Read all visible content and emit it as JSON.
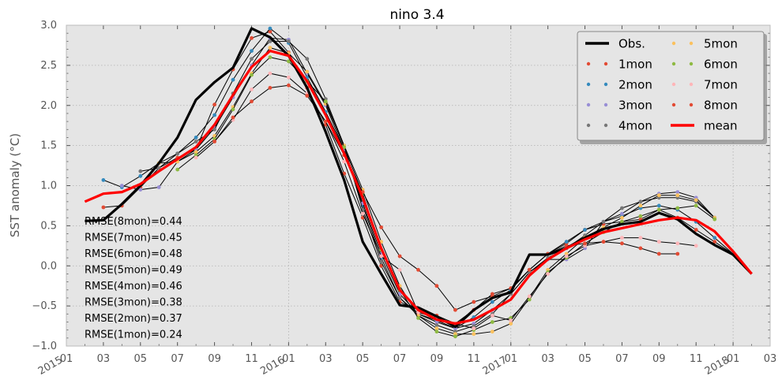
{
  "chart_data": {
    "type": "line",
    "title": "nino 3.4",
    "ylabel": "SST anomaly (°C)",
    "xlabel": "",
    "ylim": [
      -1.0,
      3.0
    ],
    "xlim": [
      "2015-01",
      "2018-03"
    ],
    "grid": true,
    "legend_position": "top-right",
    "y_ticks": [
      "−1.0",
      "−0.5",
      "0.0",
      "0.5",
      "1.0",
      "1.5",
      "2.0",
      "2.5",
      "3.0"
    ],
    "x_ticks": [
      "2015",
      "01",
      "03",
      "05",
      "07",
      "09",
      "11",
      "2016",
      "01",
      "03",
      "05",
      "07",
      "09",
      "11",
      "2017",
      "01",
      "03",
      "05",
      "07",
      "09",
      "11",
      "2018",
      "01",
      "03"
    ],
    "colors": {
      "obs": "#000000",
      "mean": "#ff0000",
      "1mon": "#e24a33",
      "2mon": "#348abd",
      "3mon": "#988ed5",
      "4mon": "#777777",
      "5mon": "#fbc15e",
      "6mon": "#8eba42",
      "7mon": "#ffb5b8",
      "8mon": "#e24a33"
    },
    "obs": {
      "name": "Obs.",
      "x": [
        "2015-02",
        "2015-03",
        "2015-04",
        "2015-05",
        "2015-06",
        "2015-07",
        "2015-08",
        "2015-09",
        "2015-10",
        "2015-11",
        "2015-12",
        "2016-01",
        "2016-02",
        "2016-03",
        "2016-04",
        "2016-05",
        "2016-06",
        "2016-07",
        "2016-08",
        "2016-09",
        "2016-10",
        "2016-11",
        "2016-12",
        "2017-01",
        "2017-02",
        "2017-03",
        "2017-04",
        "2017-05",
        "2017-06",
        "2017-07",
        "2017-08",
        "2017-09",
        "2017-10",
        "2017-11",
        "2017-12",
        "2018-01",
        "2018-02"
      ],
      "values": [
        0.56,
        0.57,
        0.77,
        1.0,
        1.28,
        1.6,
        2.07,
        2.29,
        2.47,
        2.96,
        2.85,
        2.62,
        2.22,
        1.67,
        1.07,
        0.3,
        -0.1,
        -0.49,
        -0.52,
        -0.63,
        -0.76,
        -0.55,
        -0.4,
        -0.33,
        0.14,
        0.14,
        0.22,
        0.35,
        0.46,
        0.52,
        0.55,
        0.66,
        0.58,
        0.4,
        0.26,
        0.14,
        -0.1
      ]
    },
    "mean": {
      "name": "mean",
      "x": [
        "2015-02",
        "2015-03",
        "2015-04",
        "2015-05",
        "2015-06",
        "2015-07",
        "2015-08",
        "2015-09",
        "2015-10",
        "2015-11",
        "2015-12",
        "2016-01",
        "2016-02",
        "2016-03",
        "2016-04",
        "2016-05",
        "2016-06",
        "2016-07",
        "2016-08",
        "2016-09",
        "2016-10",
        "2016-11",
        "2016-12",
        "2017-01",
        "2017-02",
        "2017-03",
        "2017-04",
        "2017-05",
        "2017-06",
        "2017-07",
        "2017-08",
        "2017-09",
        "2017-10",
        "2017-11",
        "2017-12",
        "2018-01",
        "2018-02"
      ],
      "values": [
        0.8,
        0.9,
        0.92,
        1.02,
        1.18,
        1.33,
        1.48,
        1.76,
        2.13,
        2.48,
        2.68,
        2.62,
        2.3,
        1.88,
        1.4,
        0.85,
        0.22,
        -0.3,
        -0.55,
        -0.67,
        -0.72,
        -0.67,
        -0.55,
        -0.42,
        -0.12,
        0.08,
        0.22,
        0.33,
        0.42,
        0.47,
        0.52,
        0.57,
        0.6,
        0.57,
        0.43,
        0.18,
        -0.1
      ]
    },
    "series": [
      {
        "name": "1mon",
        "x": [
          "2015-03",
          "2015-04",
          "2015-05",
          "2015-06",
          "2015-07",
          "2015-08",
          "2015-09",
          "2015-10",
          "2015-11",
          "2015-12",
          "2016-01",
          "2016-02",
          "2016-03",
          "2016-04",
          "2016-05",
          "2016-06",
          "2016-07",
          "2016-08",
          "2016-09",
          "2016-10",
          "2016-11",
          "2016-12",
          "2017-01",
          "2017-02",
          "2017-03",
          "2017-04",
          "2017-05",
          "2017-06",
          "2017-07",
          "2017-08",
          "2017-09",
          "2017-10",
          "2017-11",
          "2017-12",
          "2018-01"
        ],
        "values": [
          0.73,
          0.75,
          0.98,
          1.22,
          1.35,
          1.45,
          2.01,
          2.45,
          2.84,
          2.92,
          2.66,
          2.22,
          1.76,
          1.15,
          0.6,
          0.0,
          -0.45,
          -0.55,
          -0.62,
          -0.72,
          -0.55,
          -0.35,
          -0.28,
          -0.05,
          0.15,
          0.28,
          0.45,
          0.52,
          0.55,
          0.58,
          0.7,
          0.6,
          0.45,
          0.3,
          0.15
        ]
      },
      {
        "name": "2mon",
        "x": [
          "2015-03",
          "2015-04",
          "2015-05",
          "2015-06",
          "2015-07",
          "2015-08",
          "2015-09",
          "2015-10",
          "2015-11",
          "2015-12",
          "2016-01",
          "2016-02",
          "2016-03",
          "2016-04",
          "2016-05",
          "2016-06",
          "2016-07",
          "2016-08",
          "2016-09",
          "2016-10",
          "2016-11",
          "2016-12",
          "2017-01",
          "2017-02",
          "2017-03",
          "2017-04",
          "2017-05",
          "2017-06",
          "2017-07",
          "2017-08",
          "2017-09",
          "2017-10",
          "2017-11",
          "2017-12",
          "2018-01"
        ],
        "values": [
          1.07,
          0.98,
          1.12,
          1.28,
          1.4,
          1.6,
          1.88,
          2.32,
          2.68,
          2.96,
          2.78,
          2.35,
          1.92,
          1.45,
          0.75,
          0.1,
          -0.4,
          -0.6,
          -0.68,
          -0.78,
          -0.64,
          -0.45,
          -0.3,
          -0.05,
          0.15,
          0.3,
          0.45,
          0.55,
          0.62,
          0.72,
          0.75,
          0.7,
          0.55,
          0.35,
          0.15
        ]
      },
      {
        "name": "3mon",
        "x": [
          "2015-04",
          "2015-05",
          "2015-06",
          "2015-07",
          "2015-08",
          "2015-09",
          "2015-10",
          "2015-11",
          "2015-12",
          "2016-01",
          "2016-02",
          "2016-03",
          "2016-04",
          "2016-05",
          "2016-06",
          "2016-07",
          "2016-08",
          "2016-09",
          "2016-10",
          "2016-11",
          "2016-12",
          "2017-01",
          "2017-02",
          "2017-03",
          "2017-04",
          "2017-05",
          "2017-06",
          "2017-07",
          "2017-08",
          "2017-09",
          "2017-10",
          "2017-11",
          "2017-12"
        ],
        "values": [
          1.0,
          0.95,
          0.98,
          1.3,
          1.45,
          1.72,
          2.1,
          2.5,
          2.84,
          2.82,
          2.4,
          2.0,
          1.45,
          0.78,
          0.15,
          -0.35,
          -0.6,
          -0.7,
          -0.78,
          -0.72,
          -0.55,
          -0.35,
          -0.08,
          0.08,
          0.08,
          0.22,
          0.55,
          0.65,
          0.8,
          0.9,
          0.92,
          0.85,
          0.6
        ]
      },
      {
        "name": "4mon",
        "x": [
          "2015-05",
          "2015-06",
          "2015-07",
          "2015-08",
          "2015-09",
          "2015-10",
          "2015-11",
          "2015-12",
          "2016-01",
          "2016-02",
          "2016-03",
          "2016-04",
          "2016-05",
          "2016-06",
          "2016-07",
          "2016-08",
          "2016-09",
          "2016-10",
          "2016-11",
          "2016-12",
          "2017-01",
          "2017-02",
          "2017-03",
          "2017-04",
          "2017-05",
          "2017-06",
          "2017-07",
          "2017-08",
          "2017-09",
          "2017-10",
          "2017-11",
          "2017-12"
        ],
        "values": [
          1.18,
          1.22,
          1.4,
          1.55,
          1.7,
          2.15,
          2.58,
          2.8,
          2.8,
          2.58,
          2.08,
          1.5,
          0.7,
          0.05,
          -0.4,
          -0.62,
          -0.74,
          -0.82,
          -0.75,
          -0.6,
          -0.35,
          -0.08,
          0.1,
          0.22,
          0.38,
          0.55,
          0.72,
          0.8,
          0.85,
          0.85,
          0.8,
          0.6
        ]
      },
      {
        "name": "5mon",
        "x": [
          "2015-06",
          "2015-07",
          "2015-08",
          "2015-09",
          "2015-10",
          "2015-11",
          "2015-12",
          "2016-01",
          "2016-02",
          "2016-03",
          "2016-04",
          "2016-05",
          "2016-06",
          "2016-07",
          "2016-08",
          "2016-09",
          "2016-10",
          "2016-11",
          "2016-12",
          "2017-01",
          "2017-02",
          "2017-03",
          "2017-04",
          "2017-05",
          "2017-06",
          "2017-07",
          "2017-08",
          "2017-09",
          "2017-10",
          "2017-11",
          "2017-12"
        ],
        "values": [
          1.28,
          1.3,
          1.42,
          1.62,
          1.98,
          2.4,
          2.72,
          2.65,
          2.42,
          2.02,
          1.5,
          0.95,
          0.3,
          -0.25,
          -0.62,
          -0.78,
          -0.85,
          -0.85,
          -0.82,
          -0.72,
          -0.4,
          -0.05,
          0.15,
          0.35,
          0.48,
          0.6,
          0.75,
          0.88,
          0.88,
          0.82,
          0.6
        ]
      },
      {
        "name": "6mon",
        "x": [
          "2015-07",
          "2015-08",
          "2015-09",
          "2015-10",
          "2015-11",
          "2015-12",
          "2016-01",
          "2016-02",
          "2016-03",
          "2016-04",
          "2016-05",
          "2016-06",
          "2016-07",
          "2016-08",
          "2016-09",
          "2016-10",
          "2016-11",
          "2016-12",
          "2017-01",
          "2017-02",
          "2017-03",
          "2017-04",
          "2017-05",
          "2017-06",
          "2017-07",
          "2017-08",
          "2017-09",
          "2017-10",
          "2017-11",
          "2017-12"
        ],
        "values": [
          1.2,
          1.38,
          1.58,
          1.95,
          2.38,
          2.6,
          2.55,
          2.3,
          2.05,
          1.48,
          0.9,
          0.2,
          -0.3,
          -0.65,
          -0.82,
          -0.88,
          -0.8,
          -0.7,
          -0.65,
          -0.42,
          -0.08,
          0.1,
          0.28,
          0.42,
          0.55,
          0.62,
          0.7,
          0.72,
          0.75,
          0.58
        ]
      },
      {
        "name": "7mon",
        "x": [
          "2015-08",
          "2015-09",
          "2015-10",
          "2015-11",
          "2015-12",
          "2016-01",
          "2016-02",
          "2016-03",
          "2016-04",
          "2016-05",
          "2016-06",
          "2016-07",
          "2016-08",
          "2016-09",
          "2016-10",
          "2016-11",
          "2016-12",
          "2017-01",
          "2017-02",
          "2017-03",
          "2017-04",
          "2017-05",
          "2017-06",
          "2017-07",
          "2017-08",
          "2017-09",
          "2017-10",
          "2017-11"
        ],
        "values": [
          1.35,
          1.55,
          1.82,
          2.2,
          2.4,
          2.35,
          2.15,
          1.8,
          1.3,
          0.65,
          0.12,
          -0.05,
          -0.58,
          -0.65,
          -0.72,
          -0.78,
          -0.62,
          -0.68,
          -0.38,
          -0.1,
          0.12,
          0.25,
          0.3,
          0.35,
          0.35,
          0.3,
          0.28,
          0.25
        ]
      },
      {
        "name": "8mon",
        "x": [
          "2015-09",
          "2015-10",
          "2015-11",
          "2015-12",
          "2016-01",
          "2016-02",
          "2016-03",
          "2016-04",
          "2016-05",
          "2016-06",
          "2016-07",
          "2016-08",
          "2016-09",
          "2016-10",
          "2016-11",
          "2016-12",
          "2017-01",
          "2017-02",
          "2017-03",
          "2017-04",
          "2017-05",
          "2017-06",
          "2017-07",
          "2017-08",
          "2017-09",
          "2017-10"
        ],
        "values": [
          1.55,
          1.85,
          2.05,
          2.22,
          2.25,
          2.12,
          1.8,
          1.38,
          0.92,
          0.48,
          0.12,
          -0.05,
          -0.25,
          -0.55,
          -0.45,
          -0.38,
          -0.28,
          -0.05,
          0.15,
          0.25,
          0.28,
          0.3,
          0.28,
          0.22,
          0.15,
          0.15
        ]
      }
    ],
    "rmse": [
      "RMSE(8mon)=0.44",
      "RMSE(7mon)=0.45",
      "RMSE(6mon)=0.48",
      "RMSE(5mon)=0.49",
      "RMSE(4mon)=0.46",
      "RMSE(3mon)=0.38",
      "RMSE(2mon)=0.37",
      "RMSE(1mon)=0.24"
    ],
    "legend_order": [
      "Obs.",
      "1mon",
      "2mon",
      "3mon",
      "4mon",
      "5mon",
      "6mon",
      "7mon",
      "8mon",
      "mean"
    ]
  }
}
